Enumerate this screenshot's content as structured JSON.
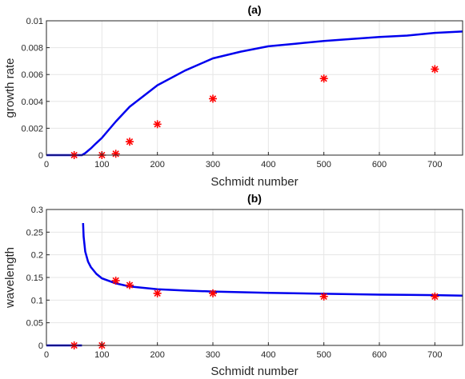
{
  "colors": {
    "curve": "#0000ee",
    "marker": "#ff0000",
    "grid": "#e6e6e6",
    "axis": "#262626"
  },
  "chart_data": [
    {
      "type": "line",
      "title": "(a)",
      "xlabel": "Schmidt number",
      "ylabel": "growth rate",
      "xlim": [
        0,
        750
      ],
      "ylim": [
        0,
        0.01
      ],
      "xticks": [
        0,
        100,
        200,
        300,
        400,
        500,
        600,
        700
      ],
      "yticks": [
        0,
        0.002,
        0.004,
        0.006,
        0.008,
        0.01
      ],
      "ytick_labels": [
        "0",
        "0.002",
        "0.004",
        "0.006",
        "0.008",
        "0.01"
      ],
      "grid": true,
      "series": [
        {
          "kind": "line",
          "x": [
            0,
            50,
            64,
            70,
            80,
            90,
            100,
            125,
            150,
            175,
            200,
            250,
            300,
            350,
            400,
            450,
            500,
            550,
            600,
            650,
            700,
            750
          ],
          "y": [
            0,
            0,
            0,
            0.00015,
            0.0005,
            0.0009,
            0.00128,
            0.0025,
            0.0036,
            0.0044,
            0.0052,
            0.0063,
            0.0072,
            0.0077,
            0.0081,
            0.0083,
            0.0085,
            0.00865,
            0.0088,
            0.0089,
            0.0091,
            0.0092
          ]
        },
        {
          "kind": "scatter",
          "x": [
            50,
            100,
            125,
            150,
            200,
            300,
            500,
            700
          ],
          "y": [
            0,
            0,
            0.0001,
            0.001,
            0.0023,
            0.0042,
            0.0057,
            0.0064
          ]
        }
      ]
    },
    {
      "type": "line",
      "title": "(b)",
      "xlabel": "Schmidt number",
      "ylabel": "wavelength",
      "xlim": [
        0,
        750
      ],
      "ylim": [
        0,
        0.3
      ],
      "xticks": [
        0,
        100,
        200,
        300,
        400,
        500,
        600,
        700
      ],
      "yticks": [
        0,
        0.05,
        0.1,
        0.15,
        0.2,
        0.25,
        0.3
      ],
      "ytick_labels": [
        "0",
        "0.05",
        "0.1",
        "0.15",
        "0.2",
        "0.25",
        "0.3"
      ],
      "grid": true,
      "series": [
        {
          "kind": "line",
          "x": [
            0,
            64
          ],
          "y": [
            0,
            0
          ]
        },
        {
          "kind": "line",
          "x": [
            66,
            67,
            70,
            75,
            80,
            90,
            100,
            125,
            150,
            200,
            250,
            300,
            400,
            500,
            600,
            700,
            750
          ],
          "y": [
            0.27,
            0.24,
            0.207,
            0.185,
            0.173,
            0.158,
            0.148,
            0.137,
            0.13,
            0.124,
            0.121,
            0.119,
            0.116,
            0.114,
            0.112,
            0.111,
            0.11
          ]
        },
        {
          "kind": "scatter",
          "x": [
            50,
            100,
            125,
            150,
            200,
            300,
            500,
            700
          ],
          "y": [
            0,
            0,
            0.143,
            0.133,
            0.115,
            0.115,
            0.108,
            0.108
          ]
        }
      ]
    }
  ]
}
